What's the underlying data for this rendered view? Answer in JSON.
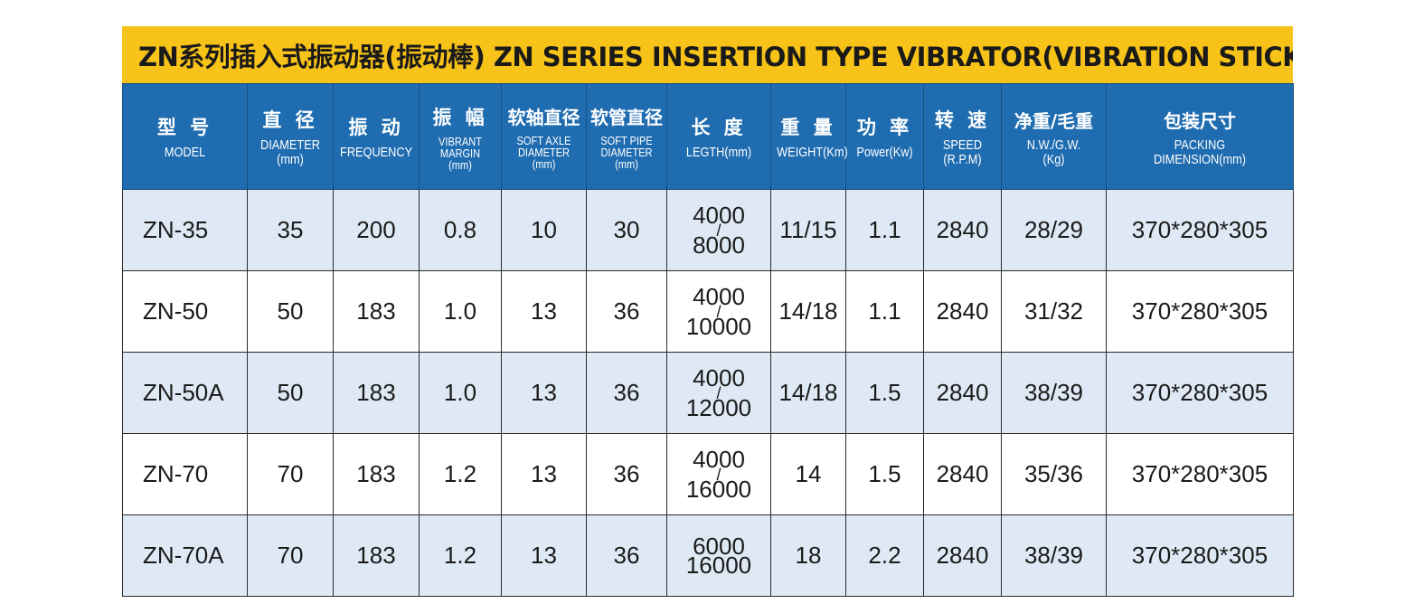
{
  "title": "ZN系列插入式振动器(振动棒) ZN SERIES INSERTION TYPE VIBRATOR(VIBRATION STICK)",
  "headers": [
    {
      "cn": "型 号",
      "en": "MODEL"
    },
    {
      "cn": "直 径",
      "en": "DIAMETER\n(mm)"
    },
    {
      "cn": "振 动",
      "en": "FREQUENCY"
    },
    {
      "cn": "振 幅",
      "en": "VIBRANT\nMARGIN\n(mm)"
    },
    {
      "cn": "软轴直径",
      "en": "SOFT AXLE\nDIAMETER\n(mm)"
    },
    {
      "cn": "软管直径",
      "en": "SOFT PIPE\nDIAMETER\n(mm)"
    },
    {
      "cn": "长 度",
      "en": "LEGTH(mm)"
    },
    {
      "cn": "重 量",
      "en": "WEIGHT(Km)"
    },
    {
      "cn": "功 率",
      "en": "Power(Kw)"
    },
    {
      "cn": "转 速",
      "en": "SPEED\n(R.P.M)"
    },
    {
      "cn": "净重/毛重",
      "en": "N.W./G.W.\n(Kg)"
    },
    {
      "cn": "包装尺寸",
      "en": "PACKING\nDIMENSION(mm)"
    }
  ],
  "rows": [
    {
      "model": "ZN-35",
      "diameter": "35",
      "frequency": "200",
      "margin": "0.8",
      "axle": "10",
      "pipe": "30",
      "length_top": "4000",
      "length_sep": "/",
      "length_bottom": "8000",
      "weight": "11/15",
      "power": "1.1",
      "speed": "2840",
      "nwgw": "28/29",
      "packing": "370*280*305"
    },
    {
      "model": "ZN-50",
      "diameter": "50",
      "frequency": "183",
      "margin": "1.0",
      "axle": "13",
      "pipe": "36",
      "length_top": "4000",
      "length_sep": "/",
      "length_bottom": "10000",
      "weight": "14/18",
      "power": "1.1",
      "speed": "2840",
      "nwgw": "31/32",
      "packing": "370*280*305"
    },
    {
      "model": "ZN-50A",
      "diameter": "50",
      "frequency": "183",
      "margin": "1.0",
      "axle": "13",
      "pipe": "36",
      "length_top": "4000",
      "length_sep": "/",
      "length_bottom": "12000",
      "weight": "14/18",
      "power": "1.5",
      "speed": "2840",
      "nwgw": "38/39",
      "packing": "370*280*305"
    },
    {
      "model": "ZN-70",
      "diameter": "70",
      "frequency": "183",
      "margin": "1.2",
      "axle": "13",
      "pipe": "36",
      "length_top": "4000",
      "length_sep": "/",
      "length_bottom": "16000",
      "weight": "14",
      "power": "1.5",
      "speed": "2840",
      "nwgw": "35/36",
      "packing": "370*280*305"
    },
    {
      "model": "ZN-70A",
      "diameter": "70",
      "frequency": "183",
      "margin": "1.2",
      "axle": "13",
      "pipe": "36",
      "length_top": "6000",
      "length_sep": "",
      "length_bottom": "16000",
      "weight": "18",
      "power": "2.2",
      "speed": "2840",
      "nwgw": "38/39",
      "packing": "370*280*305"
    }
  ]
}
